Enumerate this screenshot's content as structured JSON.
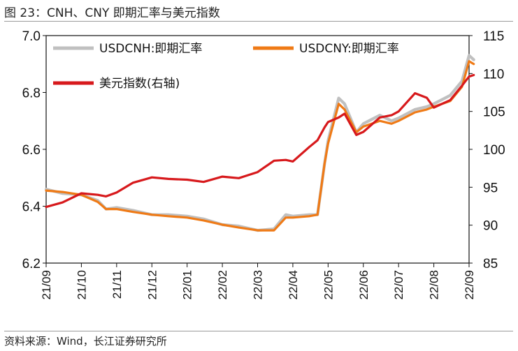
{
  "page": {
    "title": "图 23：CNH、CNY 即期汇率与美元指数",
    "source": "资料来源：Wind，长江证券研究所"
  },
  "chart_data": {
    "type": "line",
    "x_ticks": [
      "21/09",
      "21/10",
      "21/11",
      "21/12",
      "22/01",
      "22/02",
      "22/03",
      "22/04",
      "22/05",
      "22/06",
      "22/07",
      "22/08",
      "22/09"
    ],
    "y_left": {
      "min": 6.2,
      "max": 7.0,
      "ticks": [
        "6.2",
        "6.4",
        "6.6",
        "6.8",
        "7.0"
      ]
    },
    "y_right": {
      "min": 85,
      "max": 115,
      "ticks": [
        "85",
        "90",
        "95",
        "100",
        "105",
        "110",
        "115"
      ]
    },
    "legend": {
      "placement": "top-left"
    },
    "grid": false,
    "series": [
      {
        "name": "USDCNH:即期汇率",
        "axis": "left",
        "color": "#c0c0c0",
        "points": [
          [
            "21/09",
            6.46
          ],
          [
            "21/09/15",
            6.445
          ],
          [
            "21/10",
            6.44
          ],
          [
            "21/10/15",
            6.42
          ],
          [
            "21/10/22",
            6.39
          ],
          [
            "21/11",
            6.395
          ],
          [
            "21/11/15",
            6.385
          ],
          [
            "21/12",
            6.37
          ],
          [
            "21/12/15",
            6.37
          ],
          [
            "22/01",
            6.365
          ],
          [
            "22/01/15",
            6.355
          ],
          [
            "22/02",
            6.335
          ],
          [
            "22/02/15",
            6.33
          ],
          [
            "22/03",
            6.315
          ],
          [
            "22/03/15",
            6.32
          ],
          [
            "22/03/25",
            6.37
          ],
          [
            "22/04",
            6.365
          ],
          [
            "22/04/15",
            6.37
          ],
          [
            "22/04/22",
            6.37
          ],
          [
            "22/04/28",
            6.55
          ],
          [
            "22/05",
            6.63
          ],
          [
            "22/05/10",
            6.78
          ],
          [
            "22/05/15",
            6.76
          ],
          [
            "22/05/25",
            6.66
          ],
          [
            "22/06",
            6.69
          ],
          [
            "22/06/15",
            6.72
          ],
          [
            "22/06/25",
            6.7
          ],
          [
            "22/07",
            6.71
          ],
          [
            "22/07/15",
            6.74
          ],
          [
            "22/07/25",
            6.75
          ],
          [
            "22/08",
            6.76
          ],
          [
            "22/08/15",
            6.79
          ],
          [
            "22/08/25",
            6.84
          ],
          [
            "22/09",
            6.93
          ],
          [
            "22/09/05",
            6.915
          ]
        ]
      },
      {
        "name": "USDCNY:即期汇率",
        "axis": "left",
        "color": "#ef7a16",
        "points": [
          [
            "21/09",
            6.455
          ],
          [
            "21/09/15",
            6.45
          ],
          [
            "21/10",
            6.44
          ],
          [
            "21/10/15",
            6.415
          ],
          [
            "21/10/22",
            6.39
          ],
          [
            "21/11",
            6.39
          ],
          [
            "21/11/15",
            6.38
          ],
          [
            "21/12",
            6.37
          ],
          [
            "21/12/15",
            6.365
          ],
          [
            "22/01",
            6.36
          ],
          [
            "22/01/15",
            6.35
          ],
          [
            "22/02",
            6.335
          ],
          [
            "22/02/15",
            6.325
          ],
          [
            "22/03",
            6.315
          ],
          [
            "22/03/15",
            6.315
          ],
          [
            "22/03/25",
            6.36
          ],
          [
            "22/04",
            6.36
          ],
          [
            "22/04/15",
            6.365
          ],
          [
            "22/04/22",
            6.37
          ],
          [
            "22/04/28",
            6.55
          ],
          [
            "22/05",
            6.62
          ],
          [
            "22/05/10",
            6.76
          ],
          [
            "22/05/15",
            6.74
          ],
          [
            "22/05/25",
            6.66
          ],
          [
            "22/06",
            6.68
          ],
          [
            "22/06/15",
            6.7
          ],
          [
            "22/06/25",
            6.69
          ],
          [
            "22/07",
            6.7
          ],
          [
            "22/07/15",
            6.73
          ],
          [
            "22/07/25",
            6.74
          ],
          [
            "22/08",
            6.75
          ],
          [
            "22/08/15",
            6.77
          ],
          [
            "22/08/25",
            6.82
          ],
          [
            "22/09",
            6.91
          ],
          [
            "22/09/05",
            6.9
          ]
        ]
      },
      {
        "name": "美元指数(右轴)",
        "axis": "right",
        "color": "#d7191c",
        "points": [
          [
            "21/09",
            92.4
          ],
          [
            "21/09/15",
            93.0
          ],
          [
            "21/10",
            94.2
          ],
          [
            "21/10/15",
            94.0
          ],
          [
            "21/10/22",
            93.8
          ],
          [
            "21/11",
            94.3
          ],
          [
            "21/11/15",
            95.6
          ],
          [
            "21/12",
            96.3
          ],
          [
            "21/12/15",
            96.1
          ],
          [
            "22/01",
            96.0
          ],
          [
            "22/01/15",
            95.7
          ],
          [
            "22/02",
            96.4
          ],
          [
            "22/02/15",
            96.2
          ],
          [
            "22/03",
            97.0
          ],
          [
            "22/03/15",
            98.5
          ],
          [
            "22/03/25",
            98.6
          ],
          [
            "22/04",
            98.4
          ],
          [
            "22/04/15",
            100.3
          ],
          [
            "22/04/22",
            101.2
          ],
          [
            "22/04/28",
            102.9
          ],
          [
            "22/05",
            103.6
          ],
          [
            "22/05/10",
            104.2
          ],
          [
            "22/05/15",
            104.7
          ],
          [
            "22/05/25",
            101.9
          ],
          [
            "22/06",
            102.3
          ],
          [
            "22/06/15",
            104.2
          ],
          [
            "22/06/25",
            104.5
          ],
          [
            "22/07",
            105.0
          ],
          [
            "22/07/15",
            107.4
          ],
          [
            "22/07/25",
            106.8
          ],
          [
            "22/08",
            105.5
          ],
          [
            "22/08/15",
            106.5
          ],
          [
            "22/08/25",
            108.4
          ],
          [
            "22/09",
            109.6
          ],
          [
            "22/09/05",
            109.8
          ]
        ]
      }
    ]
  }
}
